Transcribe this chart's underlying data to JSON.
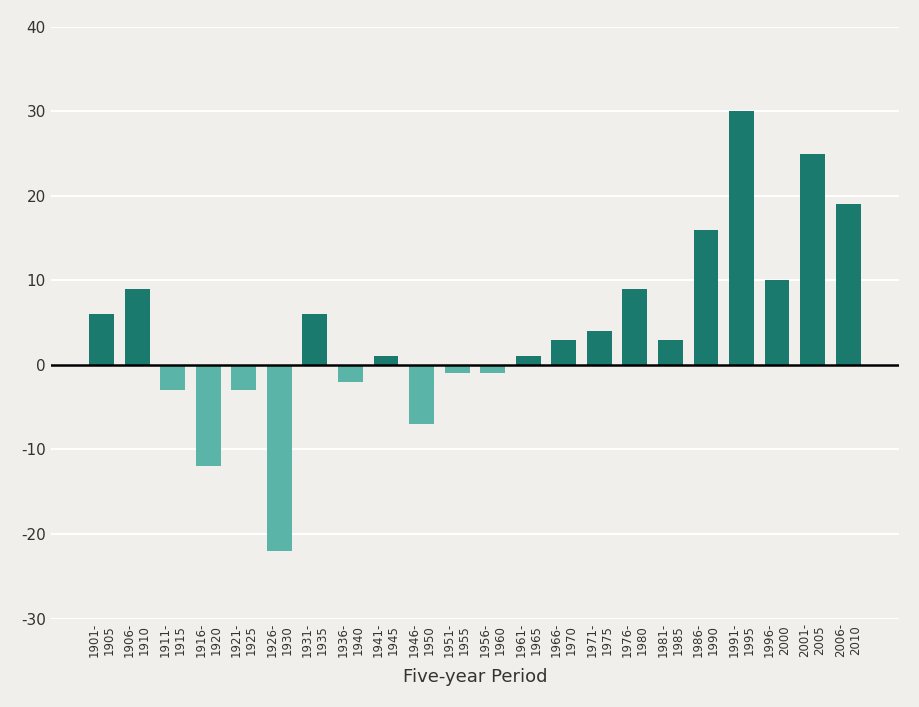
{
  "categories": [
    "1901-\n1905",
    "1906-\n1910",
    "1911-\n1915",
    "1916-\n1920",
    "1921-\n1925",
    "1926-\n1930",
    "1931-\n1935",
    "1936-\n1940",
    "1941-\n1945",
    "1946-\n1950",
    "1951-\n1955",
    "1956-\n1960",
    "1961-\n1965",
    "1966-\n1970",
    "1971-\n1975",
    "1976-\n1980",
    "1981-\n1985",
    "1986-\n1990",
    "1991-\n1995",
    "1996-\n2000",
    "2001-\n2005",
    "2006-\n2010"
  ],
  "values": [
    6,
    9,
    -3,
    -12,
    -3,
    -22,
    6,
    -2,
    1,
    -7,
    -1,
    -1,
    1,
    3,
    4,
    9,
    3,
    16,
    30,
    10,
    25,
    19
  ],
  "bar_colors_pos": "#1a7a6e",
  "bar_colors_neg": "#5ab5a8",
  "xlabel": "Five-year Period",
  "ylim": [
    -30,
    40
  ],
  "yticks": [
    -30,
    -20,
    -10,
    0,
    10,
    20,
    30,
    40
  ],
  "background_color": "#f0efeb",
  "grid_color": "#ffffff",
  "bar_width": 0.7
}
